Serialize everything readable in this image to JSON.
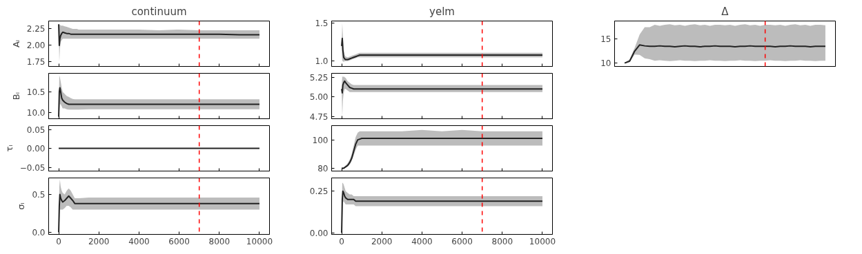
{
  "chart_data": [
    {
      "type": "line",
      "title": "continuum",
      "ylabel": "Aᵢ",
      "x": [
        0,
        30,
        60,
        100,
        150,
        200,
        300,
        400,
        500,
        600,
        700,
        800,
        900,
        1000,
        1500,
        2000,
        3000,
        4000,
        5000,
        6000,
        7000,
        8000,
        9000,
        10000
      ],
      "xlim": [
        -500,
        10500
      ],
      "xticks": [
        0,
        2000,
        4000,
        6000,
        8000,
        10000
      ],
      "ylim": [
        1.68,
        2.37
      ],
      "yticks": [
        1.75,
        {
          "value": 2.0,
          "label": "2.00"
        },
        2.25
      ],
      "tick_labels": "y",
      "series": [
        {
          "color": "#222222",
          "values": [
            2.32,
            2.0,
            2.1,
            2.15,
            2.18,
            2.2,
            2.19,
            2.18,
            2.18,
            2.17,
            2.17,
            2.17,
            2.17,
            2.17,
            2.17,
            2.17,
            2.17,
            2.17,
            2.17,
            2.17,
            2.17,
            2.17,
            2.16,
            2.16
          ],
          "lower": [
            2.3,
            1.75,
            1.95,
            2.05,
            2.08,
            2.1,
            2.1,
            2.1,
            2.1,
            2.1,
            2.1,
            2.1,
            2.1,
            2.1,
            2.1,
            2.1,
            2.1,
            2.1,
            2.1,
            2.1,
            2.1,
            2.1,
            2.1,
            2.1
          ],
          "upper": [
            2.33,
            2.3,
            2.32,
            2.3,
            2.3,
            2.3,
            2.29,
            2.28,
            2.27,
            2.26,
            2.25,
            2.25,
            2.25,
            2.24,
            2.24,
            2.24,
            2.24,
            2.24,
            2.23,
            2.24,
            2.23,
            2.23,
            2.23,
            2.23
          ]
        }
      ],
      "ref_lines": [
        {
          "axis": "x",
          "value": 7000,
          "color": "#ff0000",
          "line_style": "dashed"
        }
      ]
    },
    {
      "type": "line",
      "title": "yelm",
      "x": [
        0,
        30,
        60,
        100,
        150,
        200,
        300,
        400,
        500,
        600,
        700,
        800,
        900,
        1000,
        1500,
        2000,
        3000,
        4000,
        5000,
        6000,
        7000,
        8000,
        9000,
        10000
      ],
      "xlim": [
        -500,
        10500
      ],
      "xticks": [
        0,
        2000,
        4000,
        6000,
        8000,
        10000
      ],
      "ylim": [
        0.93,
        1.53
      ],
      "yticks": [
        {
          "value": 1.0,
          "label": "1.0"
        },
        1.5
      ],
      "tick_labels": "y",
      "series": [
        {
          "color": "#222222",
          "values": [
            1.2,
            1.3,
            1.15,
            1.05,
            1.03,
            1.02,
            1.02,
            1.03,
            1.04,
            1.05,
            1.06,
            1.07,
            1.08,
            1.08,
            1.08,
            1.08,
            1.08,
            1.08,
            1.08,
            1.08,
            1.08,
            1.08,
            1.08,
            1.08
          ],
          "lower": [
            1.18,
            1.0,
            1.0,
            0.99,
            1.0,
            1.0,
            1.0,
            1.01,
            1.02,
            1.03,
            1.04,
            1.05,
            1.05,
            1.05,
            1.05,
            1.05,
            1.05,
            1.05,
            1.05,
            1.05,
            1.05,
            1.05,
            1.05,
            1.05
          ],
          "upper": [
            1.22,
            1.5,
            1.35,
            1.15,
            1.08,
            1.06,
            1.05,
            1.06,
            1.07,
            1.08,
            1.09,
            1.1,
            1.11,
            1.11,
            1.11,
            1.11,
            1.11,
            1.11,
            1.11,
            1.11,
            1.11,
            1.11,
            1.11,
            1.11
          ]
        }
      ],
      "ref_lines": [
        {
          "axis": "x",
          "value": 7000,
          "color": "#ff0000",
          "line_style": "dashed"
        }
      ]
    },
    {
      "type": "line",
      "title": "Δ",
      "categories": [
        null,
        null,
        null,
        null,
        null,
        null,
        null,
        null,
        null,
        null,
        null,
        null,
        null,
        null,
        null,
        null,
        null,
        null,
        null,
        null,
        null,
        null,
        null,
        null,
        null,
        null,
        null,
        null,
        null,
        null,
        null,
        null,
        null,
        null,
        null,
        null,
        null,
        null,
        null,
        null,
        null
      ],
      "ylim": [
        9.3,
        18.8
      ],
      "yticks": [
        10,
        15
      ],
      "series": [
        {
          "color": "#222222",
          "values": [
            10,
            10.4,
            12.5,
            13.8,
            13.6,
            13.5,
            13.5,
            13.6,
            13.5,
            13.5,
            13.4,
            13.5,
            13.6,
            13.5,
            13.5,
            13.4,
            13.5,
            13.5,
            13.6,
            13.5,
            13.5,
            13.5,
            13.4,
            13.5,
            13.5,
            13.6,
            13.5,
            13.5,
            13.5,
            13.5,
            13.4,
            13.5,
            13.5,
            13.6,
            13.5,
            13.5,
            13.5,
            13.4,
            13.5,
            13.5,
            13.5
          ],
          "lower": [
            9.9,
            10.2,
            11.8,
            11.7,
            11,
            10.8,
            10.5,
            10.6,
            10.5,
            10.4,
            10.5,
            10.6,
            10.5,
            10.5,
            10.4,
            10.5,
            10.5,
            10.6,
            10.5,
            10.5,
            10.4,
            10.5,
            10.5,
            10.6,
            10.5,
            10.5,
            10.4,
            10.5,
            10.5,
            10.6,
            10.5,
            10.5,
            10.4,
            10.5,
            10.5,
            10.6,
            10.5,
            10.5,
            10.4,
            10.5,
            10.5
          ],
          "upper": [
            10.1,
            10.8,
            13.2,
            16,
            17.5,
            17.5,
            18,
            17.8,
            18,
            18.1,
            17.9,
            18,
            17.8,
            18,
            18.1,
            17.9,
            18,
            17.8,
            18,
            18,
            17.9,
            18,
            17.8,
            18,
            18.1,
            17.9,
            18,
            17.8,
            18,
            18,
            17.9,
            18,
            17.8,
            18,
            18.1,
            17.9,
            18,
            17.8,
            18,
            18,
            17.9
          ]
        }
      ]
    },
    {
      "type": "line",
      "ylabel": "Bᵢ",
      "x": [
        0,
        30,
        60,
        100,
        150,
        200,
        300,
        400,
        500,
        600,
        700,
        800,
        900,
        1000,
        1500,
        2000,
        3000,
        4000,
        5000,
        6000,
        7000,
        8000,
        9000,
        10000
      ],
      "xlim": [
        -500,
        10500
      ],
      "xticks": [
        0,
        2000,
        4000,
        6000,
        8000,
        10000
      ],
      "ylim": [
        9.85,
        10.95
      ],
      "yticks": [
        {
          "value": 10,
          "label": "10.0"
        },
        10.5
      ],
      "tick_labels": "y",
      "series": [
        {
          "color": "#222222",
          "values": [
            9.9,
            10.5,
            10.6,
            10.5,
            10.35,
            10.3,
            10.25,
            10.22,
            10.2,
            10.2,
            10.2,
            10.2,
            10.2,
            10.2,
            10.2,
            10.2,
            10.2,
            10.2,
            10.2,
            10.2,
            10.2,
            10.2,
            10.2,
            10.2
          ],
          "lower": [
            9.88,
            10.0,
            10.2,
            10.2,
            10.15,
            10.1,
            10.1,
            10.08,
            10.07,
            10.07,
            10.07,
            10.07,
            10.07,
            10.07,
            10.08,
            10.08,
            10.08,
            10.08,
            10.08,
            10.08,
            10.08,
            10.08,
            10.08,
            10.08
          ],
          "upper": [
            9.92,
            10.9,
            10.85,
            10.75,
            10.6,
            10.5,
            10.45,
            10.4,
            10.38,
            10.35,
            10.33,
            10.32,
            10.32,
            10.32,
            10.32,
            10.32,
            10.32,
            10.32,
            10.32,
            10.32,
            10.32,
            10.32,
            10.32,
            10.32
          ]
        }
      ],
      "ref_lines": [
        {
          "axis": "x",
          "value": 7000,
          "color": "#ff0000",
          "line_style": "dashed"
        }
      ]
    },
    {
      "type": "line",
      "x": [
        0,
        30,
        60,
        100,
        150,
        200,
        300,
        400,
        500,
        600,
        700,
        800,
        900,
        1000,
        1500,
        2000,
        3000,
        4000,
        5000,
        6000,
        7000,
        8000,
        9000,
        10000
      ],
      "xlim": [
        -500,
        10500
      ],
      "xticks": [
        0,
        2000,
        4000,
        6000,
        8000,
        10000
      ],
      "ylim": [
        4.72,
        5.3
      ],
      "yticks": [
        4.75,
        {
          "value": 5,
          "label": "5.00"
        },
        5.25
      ],
      "tick_labels": "y",
      "series": [
        {
          "color": "#222222",
          "values": [
            5.1,
            5.05,
            5.15,
            5.18,
            5.2,
            5.18,
            5.15,
            5.12,
            5.11,
            5.1,
            5.1,
            5.1,
            5.1,
            5.1,
            5.1,
            5.1,
            5.1,
            5.1,
            5.1,
            5.1,
            5.1,
            5.1,
            5.1,
            5.1
          ],
          "lower": [
            5.09,
            4.75,
            4.95,
            5.05,
            5.1,
            5.1,
            5.08,
            5.06,
            5.06,
            5.06,
            5.06,
            5.06,
            5.06,
            5.06,
            5.06,
            5.06,
            5.06,
            5.06,
            5.06,
            5.06,
            5.06,
            5.06,
            5.06,
            5.06
          ],
          "upper": [
            5.11,
            5.27,
            5.25,
            5.26,
            5.25,
            5.24,
            5.2,
            5.18,
            5.16,
            5.15,
            5.15,
            5.15,
            5.15,
            5.15,
            5.15,
            5.15,
            5.15,
            5.15,
            5.15,
            5.15,
            5.15,
            5.15,
            5.15,
            5.15
          ]
        }
      ],
      "ref_lines": [
        {
          "axis": "x",
          "value": 7000,
          "color": "#ff0000",
          "line_style": "dashed"
        }
      ]
    },
    {
      "type": "line",
      "ylabel": "τᵢ",
      "x": [
        0,
        30,
        60,
        100,
        150,
        200,
        300,
        400,
        500,
        600,
        700,
        800,
        900,
        1000,
        1500,
        2000,
        3000,
        4000,
        5000,
        6000,
        7000,
        8000,
        9000,
        10000
      ],
      "xlim": [
        -500,
        10500
      ],
      "xticks": [
        0,
        2000,
        4000,
        6000,
        8000,
        10000
      ],
      "ylim": [
        -0.06,
        0.06
      ],
      "yticks": [
        {
          "value": -0.05,
          "label": "−0.05"
        },
        {
          "value": 0,
          "label": "0.00"
        },
        0.05
      ],
      "tick_labels": "y",
      "series": [
        {
          "color": "#222222",
          "values": [
            0,
            0,
            0,
            0,
            0,
            0,
            0,
            0,
            0,
            0,
            0,
            0,
            0,
            0,
            0,
            0,
            0,
            0,
            0,
            0,
            0,
            0,
            0,
            0
          ]
        }
      ],
      "ref_lines": [
        {
          "axis": "x",
          "value": 7000,
          "color": "#ff0000",
          "line_style": "dashed"
        }
      ]
    },
    {
      "type": "line",
      "x": [
        0,
        30,
        60,
        100,
        150,
        200,
        300,
        400,
        500,
        600,
        700,
        800,
        900,
        1000,
        1500,
        2000,
        3000,
        4000,
        5000,
        6000,
        7000,
        8000,
        9000,
        10000
      ],
      "xlim": [
        -500,
        10500
      ],
      "xticks": [
        0,
        2000,
        4000,
        6000,
        8000,
        10000
      ],
      "ylim": [
        78,
        110
      ],
      "yticks": [
        80,
        100
      ],
      "tick_labels": "y",
      "series": [
        {
          "color": "#222222",
          "values": [
            80,
            80,
            80,
            80,
            80.5,
            81,
            82,
            84,
            87,
            92,
            97,
            100,
            100.5,
            101,
            101,
            101,
            101,
            101,
            101,
            101,
            101,
            101,
            101,
            101
          ],
          "lower": [
            79.5,
            79.5,
            79.5,
            79.5,
            80,
            80.5,
            81,
            82.5,
            85,
            89,
            93,
            96,
            96,
            96,
            96,
            96,
            96,
            96,
            96,
            96,
            96,
            96,
            96,
            96
          ],
          "upper": [
            80.5,
            80.5,
            80.5,
            80.5,
            81,
            82,
            83.5,
            86,
            90,
            96,
            102,
            105,
            106,
            106,
            106,
            106,
            106,
            107,
            106,
            107,
            106,
            106,
            106,
            106
          ]
        }
      ],
      "ref_lines": [
        {
          "axis": "x",
          "value": 7000,
          "color": "#ff0000",
          "line_style": "dashed"
        }
      ]
    },
    {
      "type": "line",
      "ylabel": "σᵢ",
      "x": [
        0,
        30,
        60,
        100,
        150,
        200,
        300,
        400,
        500,
        600,
        700,
        800,
        900,
        1000,
        1500,
        2000,
        3000,
        4000,
        5000,
        6000,
        7000,
        8000,
        9000,
        10000
      ],
      "xlim": [
        -500,
        10500
      ],
      "xticks": [
        0,
        2000,
        4000,
        6000,
        8000,
        10000
      ],
      "ylim": [
        -0.03,
        0.72
      ],
      "yticks": [
        {
          "value": 0,
          "label": "0.0"
        },
        0.5
      ],
      "series": [
        {
          "color": "#222222",
          "values": [
            0.0,
            0.35,
            0.5,
            0.45,
            0.42,
            0.4,
            0.42,
            0.45,
            0.48,
            0.45,
            0.42,
            0.38,
            0.38,
            0.38,
            0.38,
            0.38,
            0.38,
            0.38,
            0.38,
            0.38,
            0.38,
            0.38,
            0.38,
            0.38
          ],
          "lower": [
            0.0,
            0.1,
            0.3,
            0.3,
            0.3,
            0.3,
            0.32,
            0.35,
            0.35,
            0.33,
            0.3,
            0.3,
            0.3,
            0.3,
            0.3,
            0.3,
            0.3,
            0.3,
            0.3,
            0.3,
            0.3,
            0.3,
            0.3,
            0.3
          ],
          "upper": [
            0.02,
            0.6,
            0.7,
            0.6,
            0.55,
            0.52,
            0.5,
            0.55,
            0.58,
            0.55,
            0.5,
            0.45,
            0.45,
            0.45,
            0.46,
            0.46,
            0.46,
            0.46,
            0.46,
            0.46,
            0.46,
            0.46,
            0.46,
            0.46
          ]
        }
      ],
      "ref_lines": [
        {
          "axis": "x",
          "value": 7000,
          "color": "#ff0000",
          "line_style": "dashed"
        }
      ]
    },
    {
      "type": "line",
      "x": [
        0,
        30,
        60,
        100,
        150,
        200,
        300,
        400,
        500,
        600,
        700,
        800,
        900,
        1000,
        1500,
        2000,
        3000,
        4000,
        5000,
        6000,
        7000,
        8000,
        9000,
        10000
      ],
      "xlim": [
        -500,
        10500
      ],
      "xticks": [
        0,
        2000,
        4000,
        6000,
        8000,
        10000
      ],
      "ylim": [
        -0.01,
        0.33
      ],
      "yticks": [
        {
          "value": 0,
          "label": "0.00"
        },
        0.25
      ],
      "series": [
        {
          "color": "#222222",
          "values": [
            0.0,
            0.2,
            0.25,
            0.24,
            0.22,
            0.21,
            0.2,
            0.2,
            0.2,
            0.2,
            0.19,
            0.19,
            0.19,
            0.19,
            0.19,
            0.19,
            0.19,
            0.19,
            0.19,
            0.19,
            0.19,
            0.19,
            0.19,
            0.19
          ],
          "lower": [
            0.0,
            0.05,
            0.18,
            0.19,
            0.18,
            0.17,
            0.17,
            0.17,
            0.17,
            0.17,
            0.16,
            0.16,
            0.16,
            0.16,
            0.16,
            0.16,
            0.16,
            0.16,
            0.16,
            0.16,
            0.16,
            0.16,
            0.16,
            0.16
          ],
          "upper": [
            0.01,
            0.3,
            0.3,
            0.29,
            0.27,
            0.25,
            0.24,
            0.23,
            0.23,
            0.22,
            0.22,
            0.22,
            0.22,
            0.22,
            0.22,
            0.22,
            0.22,
            0.22,
            0.22,
            0.22,
            0.22,
            0.22,
            0.22,
            0.22
          ]
        }
      ],
      "ref_lines": [
        {
          "axis": "x",
          "value": 7000,
          "color": "#ff0000",
          "line_style": "dashed"
        }
      ]
    }
  ]
}
